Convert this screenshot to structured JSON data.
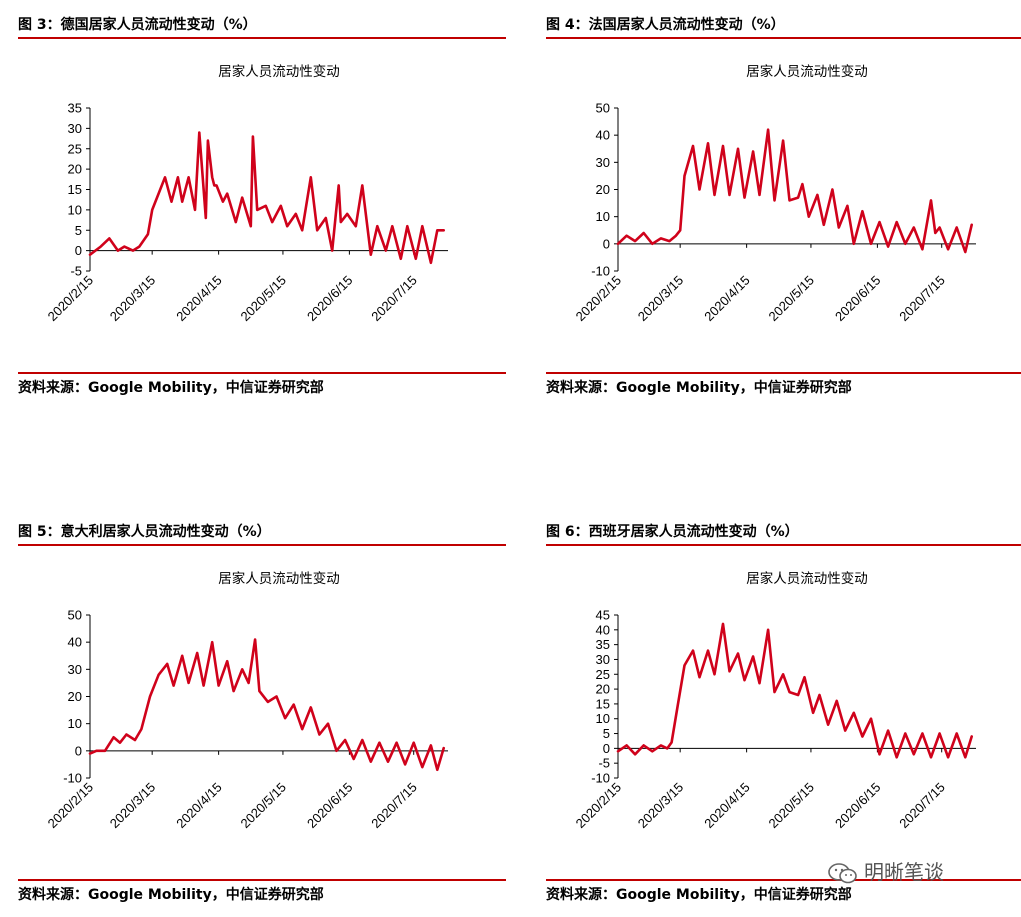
{
  "watermark": {
    "text": "明晰笔谈",
    "icon": "wechat-icon"
  },
  "panels": [
    {
      "caption": "图 3：德国居家人员流动性变动（%）",
      "source": "资料来源：Google Mobility，中信证券研究部",
      "chart_data": {
        "type": "line",
        "title": "居家人员流动性变动",
        "xlabel": "",
        "ylabel": "",
        "ylim": [
          -5,
          35
        ],
        "yticks": [
          -5,
          0,
          5,
          10,
          15,
          20,
          25,
          30,
          35
        ],
        "xticks": [
          "2020/2/15",
          "2020/3/15",
          "2020/4/15",
          "2020/5/15",
          "2020/6/15",
          "2020/7/15"
        ],
        "line_color": "#d0021b",
        "x": [
          "2020-02-15",
          "2020-02-20",
          "2020-02-24",
          "2020-02-28",
          "2020-03-02",
          "2020-03-06",
          "2020-03-09",
          "2020-03-13",
          "2020-03-15",
          "2020-03-18",
          "2020-03-21",
          "2020-03-24",
          "2020-03-27",
          "2020-03-29",
          "2020-04-01",
          "2020-04-04",
          "2020-04-06",
          "2020-04-09",
          "2020-04-10",
          "2020-04-12",
          "2020-04-13",
          "2020-04-14",
          "2020-04-17",
          "2020-04-19",
          "2020-04-23",
          "2020-04-26",
          "2020-04-30",
          "2020-05-01",
          "2020-05-03",
          "2020-05-07",
          "2020-05-10",
          "2020-05-14",
          "2020-05-17",
          "2020-05-21",
          "2020-05-24",
          "2020-05-28",
          "2020-05-31",
          "2020-06-04",
          "2020-06-07",
          "2020-06-10",
          "2020-06-11",
          "2020-06-14",
          "2020-06-18",
          "2020-06-21",
          "2020-06-25",
          "2020-06-28",
          "2020-07-02",
          "2020-07-05",
          "2020-07-09",
          "2020-07-12",
          "2020-07-16",
          "2020-07-19",
          "2020-07-23",
          "2020-07-26",
          "2020-07-29"
        ],
        "values": [
          -1,
          1,
          3,
          0,
          1,
          0,
          1,
          4,
          10,
          14,
          18,
          12,
          18,
          12,
          18,
          10,
          29,
          8,
          27,
          18,
          16,
          16,
          12,
          14,
          7,
          13,
          6,
          28,
          10,
          11,
          7,
          11,
          6,
          9,
          5,
          18,
          5,
          8,
          0,
          16,
          7,
          9,
          6,
          16,
          -1,
          6,
          0,
          6,
          -2,
          6,
          -2,
          6,
          -3,
          5,
          5
        ]
      }
    },
    {
      "caption": "图 4：法国居家人员流动性变动（%）",
      "source": "资料来源：Google Mobility，中信证券研究部",
      "chart_data": {
        "type": "line",
        "title": "居家人员流动性变动",
        "xlabel": "",
        "ylabel": "",
        "ylim": [
          -10,
          50
        ],
        "yticks": [
          -10,
          0,
          10,
          20,
          30,
          40,
          50
        ],
        "xticks": [
          "2020/2/15",
          "2020/3/15",
          "2020/4/15",
          "2020/5/15",
          "2020/6/15",
          "2020/7/15"
        ],
        "line_color": "#d0021b",
        "x": [
          "2020-02-15",
          "2020-02-19",
          "2020-02-23",
          "2020-02-27",
          "2020-03-02",
          "2020-03-06",
          "2020-03-10",
          "2020-03-13",
          "2020-03-15",
          "2020-03-17",
          "2020-03-21",
          "2020-03-24",
          "2020-03-28",
          "2020-03-31",
          "2020-04-04",
          "2020-04-07",
          "2020-04-11",
          "2020-04-14",
          "2020-04-18",
          "2020-04-21",
          "2020-04-25",
          "2020-04-28",
          "2020-05-02",
          "2020-05-05",
          "2020-05-09",
          "2020-05-11",
          "2020-05-14",
          "2020-05-18",
          "2020-05-21",
          "2020-05-25",
          "2020-05-28",
          "2020-06-01",
          "2020-06-04",
          "2020-06-08",
          "2020-06-12",
          "2020-06-16",
          "2020-06-20",
          "2020-06-24",
          "2020-06-28",
          "2020-07-02",
          "2020-07-06",
          "2020-07-10",
          "2020-07-12",
          "2020-07-14",
          "2020-07-18",
          "2020-07-22",
          "2020-07-26",
          "2020-07-29"
        ],
        "values": [
          0,
          3,
          1,
          4,
          0,
          2,
          1,
          3,
          5,
          25,
          36,
          20,
          37,
          18,
          36,
          18,
          35,
          17,
          34,
          18,
          42,
          16,
          38,
          16,
          17,
          22,
          10,
          18,
          7,
          20,
          6,
          14,
          0,
          12,
          0,
          8,
          -1,
          8,
          0,
          6,
          -2,
          16,
          4,
          6,
          -2,
          6,
          -3,
          7
        ]
      }
    },
    {
      "caption": "图 5：意大利居家人员流动性变动（%）",
      "source": "资料来源：Google Mobility，中信证券研究部",
      "chart_data": {
        "type": "line",
        "title": "居家人员流动性变动",
        "xlabel": "",
        "ylabel": "",
        "ylim": [
          -10,
          50
        ],
        "yticks": [
          -10,
          0,
          10,
          20,
          30,
          40,
          50
        ],
        "xticks": [
          "2020/2/15",
          "2020/3/15",
          "2020/4/15",
          "2020/5/15",
          "2020/6/15",
          "2020/7/15"
        ],
        "line_color": "#d0021b",
        "x": [
          "2020-02-15",
          "2020-02-18",
          "2020-02-22",
          "2020-02-26",
          "2020-02-29",
          "2020-03-03",
          "2020-03-07",
          "2020-03-10",
          "2020-03-14",
          "2020-03-18",
          "2020-03-22",
          "2020-03-25",
          "2020-03-29",
          "2020-04-01",
          "2020-04-05",
          "2020-04-08",
          "2020-04-12",
          "2020-04-15",
          "2020-04-19",
          "2020-04-22",
          "2020-04-26",
          "2020-04-29",
          "2020-05-02",
          "2020-05-04",
          "2020-05-08",
          "2020-05-12",
          "2020-05-16",
          "2020-05-20",
          "2020-05-24",
          "2020-05-28",
          "2020-06-01",
          "2020-06-05",
          "2020-06-09",
          "2020-06-13",
          "2020-06-17",
          "2020-06-21",
          "2020-06-25",
          "2020-06-29",
          "2020-07-03",
          "2020-07-07",
          "2020-07-11",
          "2020-07-15",
          "2020-07-19",
          "2020-07-23",
          "2020-07-26",
          "2020-07-29"
        ],
        "values": [
          -1,
          0,
          0,
          5,
          3,
          6,
          4,
          8,
          20,
          28,
          32,
          24,
          35,
          25,
          36,
          24,
          40,
          24,
          33,
          22,
          30,
          25,
          41,
          22,
          18,
          20,
          12,
          17,
          8,
          16,
          6,
          10,
          0,
          4,
          -3,
          4,
          -4,
          3,
          -4,
          3,
          -5,
          3,
          -6,
          2,
          -7,
          1
        ]
      }
    },
    {
      "caption": "图 6：西班牙居家人员流动性变动（%）",
      "source": "资料来源：Google Mobility，中信证券研究部",
      "chart_data": {
        "type": "line",
        "title": "居家人员流动性变动",
        "xlabel": "",
        "ylabel": "",
        "ylim": [
          -10,
          45
        ],
        "yticks": [
          -10,
          -5,
          0,
          5,
          10,
          15,
          20,
          25,
          30,
          35,
          40,
          45
        ],
        "xticks": [
          "2020/2/15",
          "2020/3/15",
          "2020/4/15",
          "2020/5/15",
          "2020/6/15",
          "2020/7/15"
        ],
        "line_color": "#d0021b",
        "x": [
          "2020-02-15",
          "2020-02-19",
          "2020-02-23",
          "2020-02-27",
          "2020-03-02",
          "2020-03-06",
          "2020-03-09",
          "2020-03-11",
          "2020-03-14",
          "2020-03-17",
          "2020-03-21",
          "2020-03-24",
          "2020-03-28",
          "2020-03-31",
          "2020-04-04",
          "2020-04-07",
          "2020-04-11",
          "2020-04-14",
          "2020-04-18",
          "2020-04-21",
          "2020-04-25",
          "2020-04-28",
          "2020-05-02",
          "2020-05-05",
          "2020-05-09",
          "2020-05-12",
          "2020-05-16",
          "2020-05-19",
          "2020-05-23",
          "2020-05-27",
          "2020-05-31",
          "2020-06-04",
          "2020-06-08",
          "2020-06-12",
          "2020-06-16",
          "2020-06-20",
          "2020-06-24",
          "2020-06-28",
          "2020-07-02",
          "2020-07-06",
          "2020-07-10",
          "2020-07-14",
          "2020-07-18",
          "2020-07-22",
          "2020-07-26",
          "2020-07-29"
        ],
        "values": [
          -1,
          1,
          -2,
          1,
          -1,
          1,
          0,
          2,
          15,
          28,
          33,
          24,
          33,
          25,
          42,
          26,
          32,
          23,
          31,
          22,
          40,
          19,
          25,
          19,
          18,
          24,
          12,
          18,
          8,
          16,
          6,
          12,
          4,
          10,
          -2,
          6,
          -3,
          5,
          -2,
          5,
          -3,
          5,
          -3,
          5,
          -3,
          4
        ]
      }
    }
  ]
}
